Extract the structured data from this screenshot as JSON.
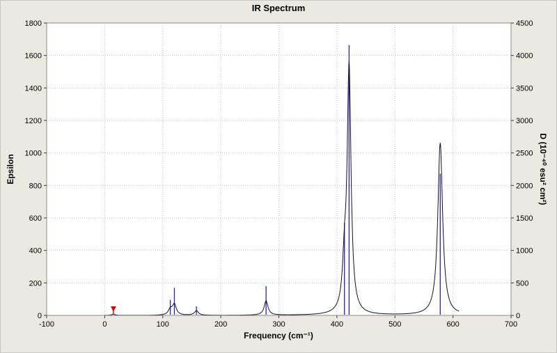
{
  "chart_data": {
    "type": "line",
    "title": "IR Spectrum",
    "xlabel": "Frequency (cm⁻¹)",
    "ylabel_left": "Epsilon",
    "ylabel_right": "D (10⁻⁴⁰ esu² cm²)",
    "xlim": [
      -100,
      700
    ],
    "ylim_left": [
      0,
      1800
    ],
    "ylim_right": [
      0,
      4500
    ],
    "x_ticks": [
      -100,
      0,
      100,
      200,
      300,
      400,
      500,
      600,
      700
    ],
    "y_ticks_left": [
      0,
      200,
      400,
      600,
      800,
      1000,
      1200,
      1400,
      1600,
      1800
    ],
    "y_ticks_right": [
      0,
      500,
      1000,
      1500,
      2000,
      2500,
      3000,
      3500,
      4000,
      4500
    ],
    "grid": true,
    "legend": "none",
    "colors": {
      "curve": "#101028",
      "stick": "#2323b8",
      "marker": "#cc0000",
      "grid": "#c6c6ce",
      "frame": "#8a8a8a",
      "plot_bg": "#ffffff",
      "outer_bg": "#ebe9e0"
    },
    "curve_range": [
      0,
      610
    ],
    "peaks_epsilon": [
      {
        "center": 15,
        "epsilon": 6,
        "hwhm": 4
      },
      {
        "center": 113,
        "epsilon": 34,
        "hwhm": 4
      },
      {
        "center": 120,
        "epsilon": 66,
        "hwhm": 4
      },
      {
        "center": 158,
        "epsilon": 28,
        "hwhm": 4
      },
      {
        "center": 278,
        "epsilon": 88,
        "hwhm": 4
      },
      {
        "center": 413,
        "epsilon": 250,
        "hwhm": 4
      },
      {
        "center": 421,
        "epsilon": 1510,
        "hwhm": 4
      },
      {
        "center": 578,
        "epsilon": 1060,
        "hwhm": 5
      }
    ],
    "sticks_d_right_axis": [
      {
        "x": 113,
        "d": 240
      },
      {
        "x": 120,
        "d": 425
      },
      {
        "x": 158,
        "d": 140
      },
      {
        "x": 278,
        "d": 450
      },
      {
        "x": 413,
        "d": 1425
      },
      {
        "x": 421,
        "d": 4160
      },
      {
        "x": 578,
        "d": 2180
      }
    ],
    "selected_mode_marker": {
      "x": 15,
      "epsilon": 55
    }
  }
}
